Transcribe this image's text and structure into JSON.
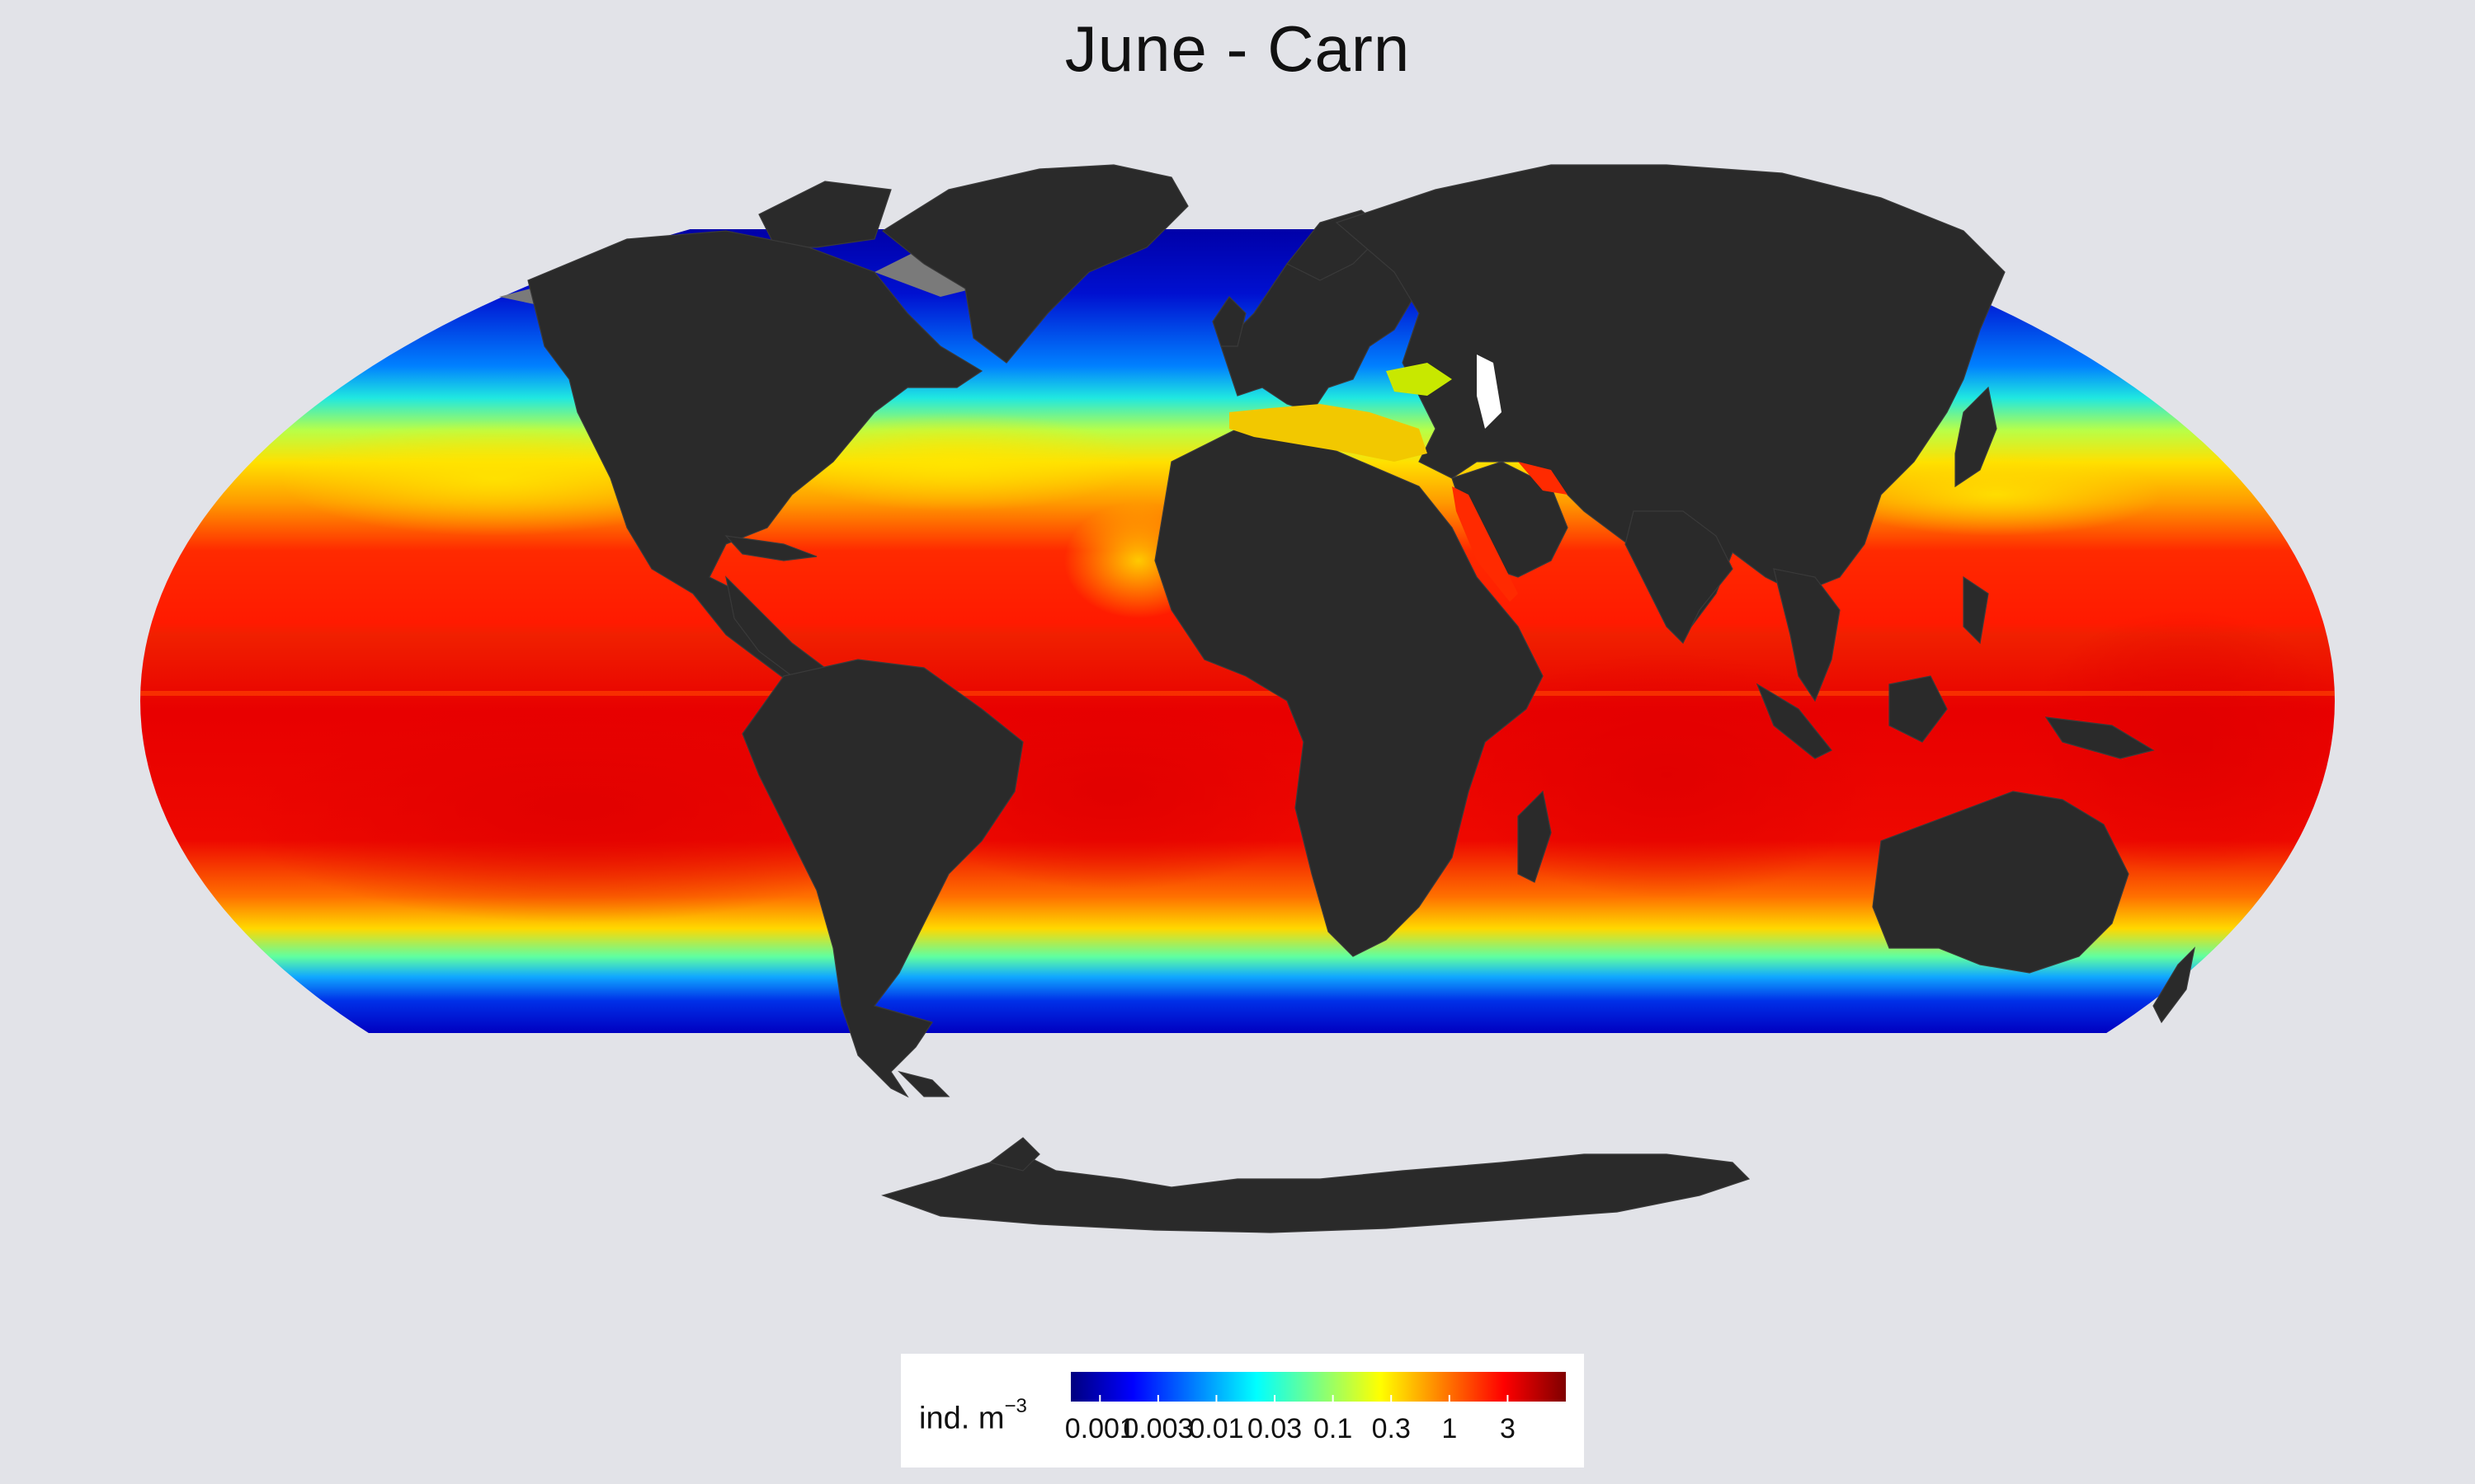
{
  "title": "June - Carn",
  "legend": {
    "unit_label": "ind. m",
    "unit_exponent": "−3",
    "ticks": [
      "0.001",
      "0.003",
      "0.01",
      "0.03",
      "0.1",
      "0.3",
      "1",
      "3"
    ],
    "colormap": [
      "#00007f",
      "#0000ff",
      "#007fff",
      "#00ffff",
      "#7fff7f",
      "#ffff00",
      "#ff7f00",
      "#ff0000",
      "#7f0000"
    ]
  },
  "colors": {
    "background": "#e2e3e8",
    "land": "#2a2a2a",
    "ice": "#7a7a7a",
    "high": "#e60000",
    "low": "#0010c8"
  }
}
